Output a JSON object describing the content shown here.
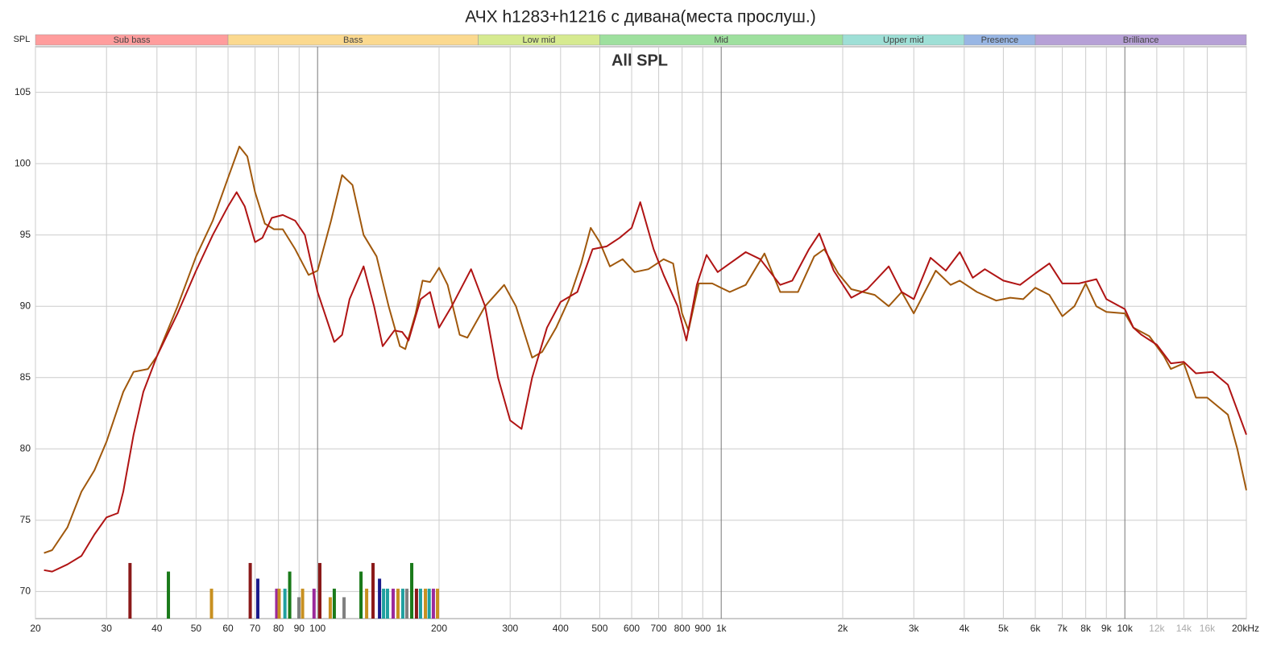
{
  "chart_data": {
    "type": "line",
    "title": "АЧХ h1283+h1216 с дивана(места прослуш.)",
    "annotation": "All SPL",
    "y_label": "SPL",
    "log_x": true,
    "grid": true,
    "xlim": [
      20,
      20000
    ],
    "ylim": [
      68.1,
      108.2
    ],
    "yticks": [
      70,
      75,
      80,
      85,
      90,
      95,
      100,
      105
    ],
    "xticks": [
      20,
      30,
      40,
      50,
      60,
      70,
      80,
      90,
      100,
      200,
      300,
      400,
      500,
      600,
      700,
      800,
      900,
      {
        "value": 1000,
        "label": "1k"
      },
      {
        "value": 2000,
        "label": "2k"
      },
      {
        "value": 3000,
        "label": "3k"
      },
      {
        "value": 4000,
        "label": "4k"
      },
      {
        "value": 5000,
        "label": "5k"
      },
      {
        "value": 6000,
        "label": "6k"
      },
      {
        "value": 7000,
        "label": "7k"
      },
      {
        "value": 8000,
        "label": "8k"
      },
      {
        "value": 9000,
        "label": "9k"
      },
      {
        "value": 10000,
        "label": "10k"
      },
      {
        "value": 12000,
        "label": "12k"
      },
      {
        "value": 14000,
        "label": "14k"
      },
      {
        "value": 16000,
        "label": "16k"
      },
      {
        "value": 20000,
        "label": "20kHz"
      }
    ],
    "bands": [
      {
        "name": "Sub bass",
        "from": 20,
        "to": 60,
        "color": "#ff9d9d"
      },
      {
        "name": "Bass",
        "from": 60,
        "to": 250,
        "color": "#fbd98f"
      },
      {
        "name": "Low mid",
        "from": 250,
        "to": 500,
        "color": "#d6ea90"
      },
      {
        "name": "Mid",
        "from": 500,
        "to": 2000,
        "color": "#9ee09e"
      },
      {
        "name": "Upper mid",
        "from": 2000,
        "to": 4000,
        "color": "#9edfd6"
      },
      {
        "name": "Presence",
        "from": 4000,
        "to": 6000,
        "color": "#98b6e4"
      },
      {
        "name": "Brilliance",
        "from": 6000,
        "to": 20000,
        "color": "#b6a0d6"
      }
    ],
    "series": [
      {
        "color": "#b01414",
        "x": [
          21,
          22,
          24,
          26,
          28,
          30,
          32,
          33,
          35,
          37,
          40,
          45,
          50,
          55,
          60,
          63,
          66,
          70,
          73,
          77,
          82,
          88,
          93,
          100,
          110,
          115,
          120,
          130,
          138,
          145,
          155,
          162,
          168,
          180,
          190,
          200,
          215,
          240,
          260,
          280,
          300,
          320,
          340,
          370,
          400,
          440,
          480,
          520,
          560,
          600,
          630,
          680,
          720,
          780,
          820,
          870,
          920,
          980,
          1050,
          1150,
          1250,
          1400,
          1500,
          1650,
          1750,
          1900,
          2100,
          2300,
          2600,
          2800,
          3000,
          3300,
          3600,
          3900,
          4200,
          4500,
          5000,
          5500,
          6000,
          6500,
          7000,
          7700,
          8500,
          9000,
          10000,
          10500,
          11000,
          12000,
          13000,
          14000,
          15000,
          16500,
          18000,
          20000
        ],
        "values": [
          71.5,
          71.4,
          71.9,
          72.5,
          74.0,
          75.2,
          75.5,
          77,
          81,
          84,
          86.5,
          89.5,
          92.5,
          95,
          97,
          98,
          97,
          94.5,
          94.8,
          96.2,
          96.4,
          96,
          95,
          91,
          87.5,
          88,
          90.5,
          92.8,
          90,
          87.2,
          88.3,
          88.2,
          87.6,
          90.5,
          91,
          88.5,
          90,
          92.6,
          90,
          85,
          82,
          81.4,
          85,
          88.5,
          90.3,
          91,
          94,
          94.2,
          94.8,
          95.5,
          97.3,
          94,
          92.2,
          90,
          87.6,
          91.5,
          93.6,
          92.4,
          93,
          93.8,
          93.3,
          91.5,
          91.8,
          94,
          95.1,
          92.5,
          90.6,
          91.2,
          92.8,
          91,
          90.5,
          93.4,
          92.5,
          93.8,
          92,
          92.6,
          91.8,
          91.5,
          92.3,
          93,
          91.6,
          91.6,
          91.9,
          90.5,
          89.8,
          88.5,
          88,
          87.3,
          86,
          86.1,
          85.3,
          85.4,
          84.5,
          81
        ]
      },
      {
        "color": "#a0580c",
        "x": [
          21,
          22,
          24,
          26,
          28,
          30,
          33,
          35,
          38,
          40,
          45,
          50,
          55,
          60,
          64,
          67,
          70,
          74,
          78,
          82,
          88,
          95,
          100,
          108,
          115,
          122,
          130,
          140,
          150,
          160,
          165,
          175,
          182,
          190,
          200,
          210,
          225,
          235,
          260,
          290,
          310,
          340,
          360,
          390,
          420,
          450,
          475,
          500,
          530,
          570,
          610,
          660,
          720,
          760,
          800,
          830,
          880,
          950,
          1050,
          1150,
          1280,
          1400,
          1550,
          1700,
          1800,
          1950,
          2100,
          2400,
          2600,
          2800,
          3000,
          3400,
          3700,
          3900,
          4300,
          4800,
          5200,
          5600,
          6000,
          6500,
          7000,
          7500,
          8000,
          8500,
          9000,
          10000,
          10500,
          11500,
          12500,
          13000,
          14000,
          15000,
          16000,
          18000,
          19000,
          20000
        ],
        "values": [
          72.7,
          72.9,
          74.5,
          77,
          78.5,
          80.5,
          84,
          85.4,
          85.6,
          86.5,
          90,
          93.5,
          96,
          99,
          101.2,
          100.5,
          98,
          95.8,
          95.4,
          95.4,
          94,
          92.2,
          92.5,
          96,
          99.2,
          98.5,
          95,
          93.5,
          90,
          87.2,
          87,
          89.5,
          91.8,
          91.7,
          92.7,
          91.5,
          88,
          87.8,
          90,
          91.5,
          90,
          86.4,
          86.8,
          88.5,
          90.5,
          93,
          95.5,
          94.5,
          92.8,
          93.3,
          92.4,
          92.6,
          93.3,
          93,
          89.5,
          88.3,
          91.6,
          91.6,
          91,
          91.5,
          93.7,
          91,
          91,
          93.5,
          94,
          92.3,
          91.2,
          90.8,
          90,
          91,
          89.5,
          92.5,
          91.5,
          91.8,
          91,
          90.4,
          90.6,
          90.5,
          91.3,
          90.8,
          89.3,
          90,
          91.6,
          90,
          89.6,
          89.5,
          88.5,
          87.9,
          86.5,
          85.6,
          86,
          83.6,
          83.6,
          82.4,
          80,
          77.1
        ]
      }
    ],
    "markers": {
      "x": [
        34.3,
        42.7,
        54.6,
        68.1,
        71.1,
        79.2,
        80.3,
        83,
        85.3,
        89.9,
        91.8,
        98,
        101.3,
        107.5,
        110,
        116.3,
        128.1,
        132.3,
        137.2,
        142.4,
        145.7,
        149,
        153.9,
        158.2,
        162.6,
        166.4,
        171.1,
        175.8,
        179.9,
        185,
        189,
        193.6,
        198.2
      ],
      "values": [
        72,
        71.4,
        70.2,
        72,
        70.9,
        70.2,
        70.2,
        70.2,
        71.4,
        69.6,
        70.2,
        70.2,
        72,
        69.6,
        70.2,
        69.6,
        71.4,
        70.2,
        72,
        70.9,
        70.2,
        70.2,
        70.2,
        70.2,
        70.2,
        70.2,
        72,
        70.2,
        70.2,
        70.2,
        70.2,
        70.2,
        70.2
      ],
      "colors": [
        "#8b1a1a",
        "#1a7a1a",
        "#c89020",
        "#8b1a1a",
        "#1a1a8b",
        "#9b2a9b",
        "#c89020",
        "#20a0a0",
        "#1a7a1a",
        "#808080",
        "#c89020",
        "#9b2a9b",
        "#8b1a1a",
        "#c89020",
        "#1a7a1a",
        "#808080",
        "#1a7a1a",
        "#c89020",
        "#8b1a1a",
        "#1a1a8b",
        "#20a0a0",
        "#20a0a0",
        "#9b2a9b",
        "#c89020",
        "#20a0a0",
        "#808080",
        "#1a7a1a",
        "#8b1a1a",
        "#20a0a0",
        "#c89020",
        "#20a0a0",
        "#9b2a9b",
        "#c89020"
      ]
    }
  }
}
